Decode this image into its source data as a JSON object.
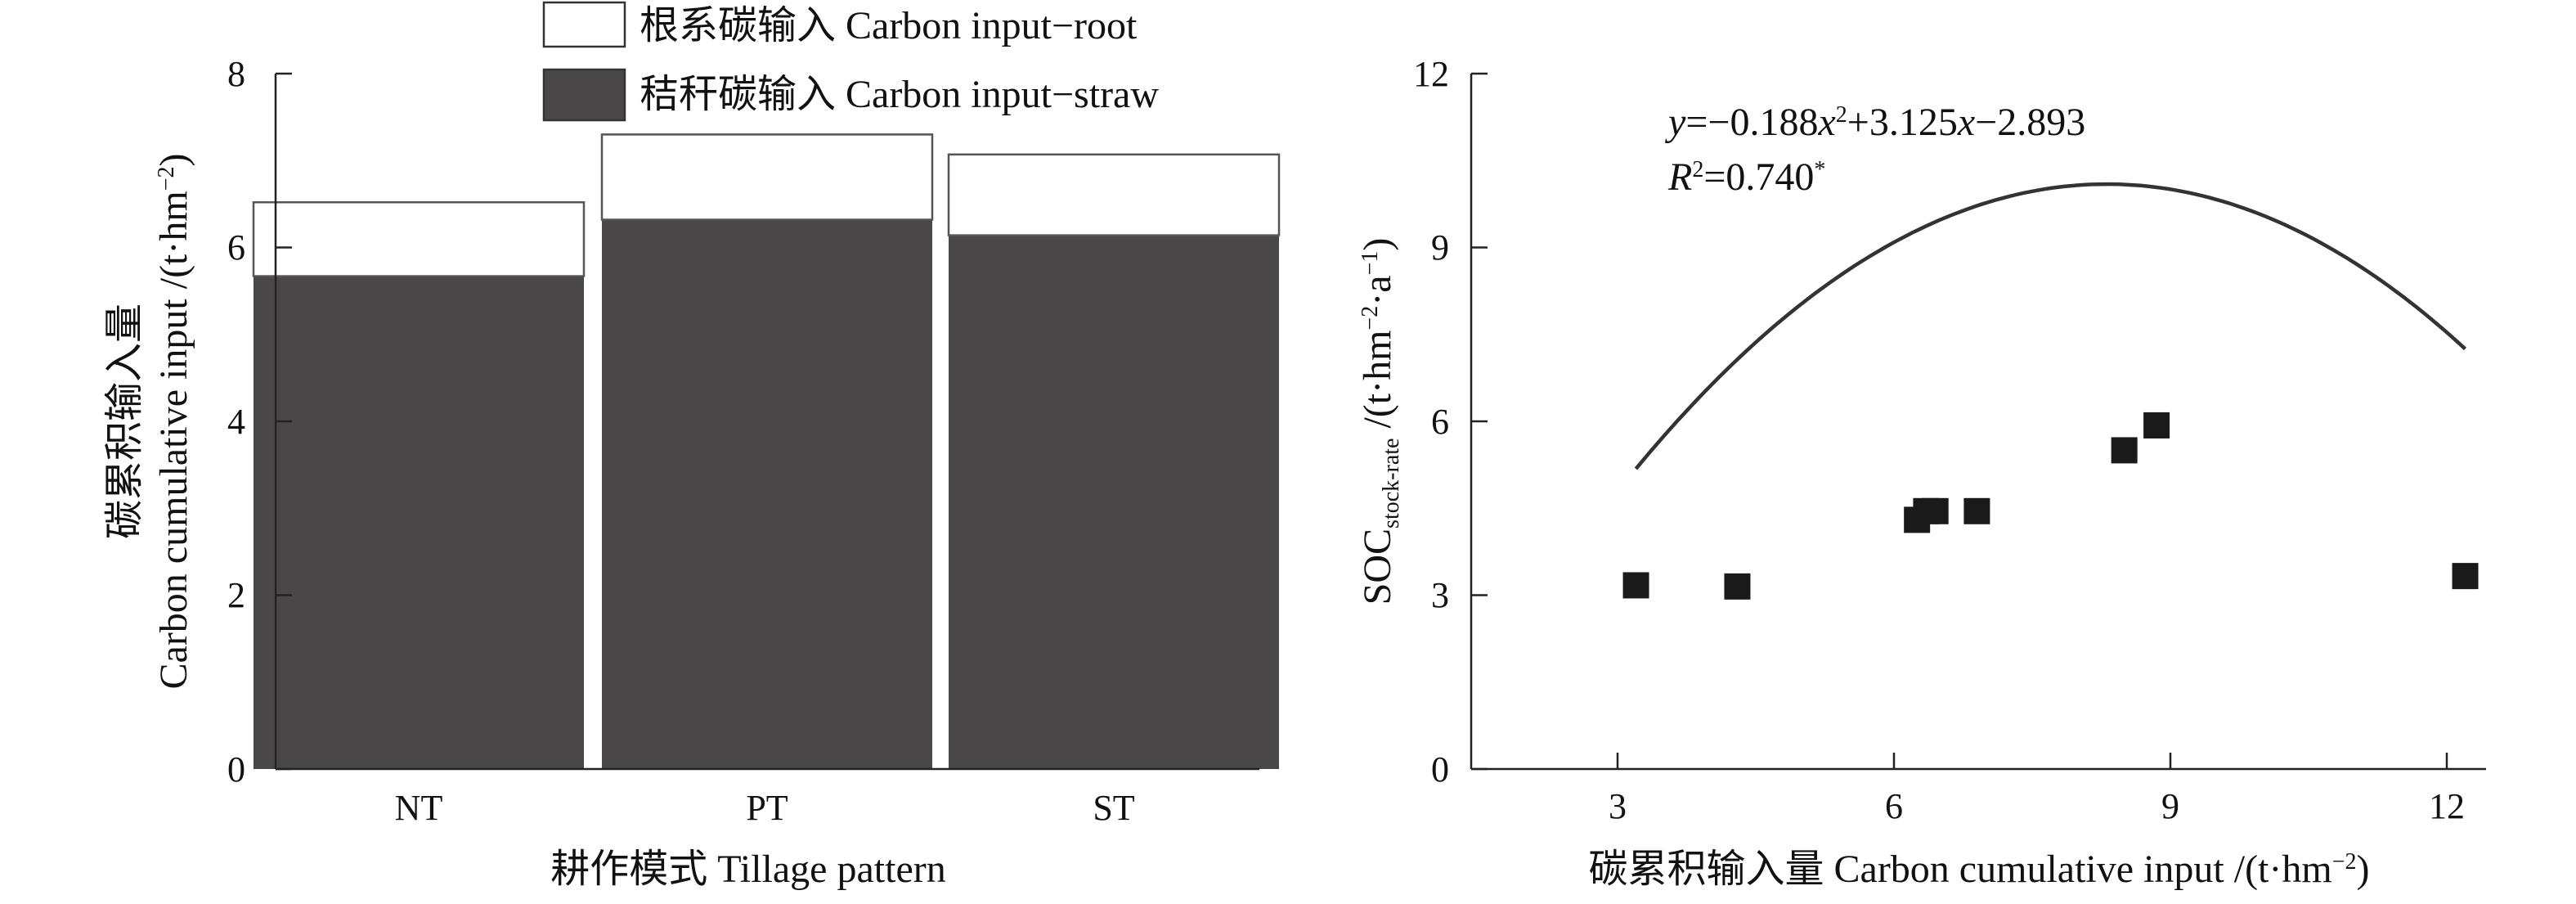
{
  "chart_data": [
    {
      "type": "bar",
      "stacked": true,
      "categories": [
        "NT",
        "PT",
        "ST"
      ],
      "series": [
        {
          "name": "秸秆碳输入 Carbon input−straw",
          "values": [
            5.67,
            6.32,
            6.14
          ],
          "color": "#4a4748"
        },
        {
          "name": "根系碳输入 Carbon input−root",
          "values": [
            0.85,
            0.98,
            0.93
          ],
          "color": "#ffffff"
        }
      ],
      "legend": {
        "position": "top",
        "items": [
          "根系碳输入 Carbon input−root",
          "秸秆碳输入 Carbon input−straw"
        ]
      },
      "xlabel": "耕作模式 Tillage pattern",
      "ylabel_line1": "碳累积输入量",
      "ylabel_line2": "Carbon cumulative input /(t·hm",
      "ylabel_sup": "−2",
      "ylabel_close": ")",
      "ylim": [
        0,
        8
      ],
      "yticks": [
        "0",
        "2",
        "4",
        "6",
        "8"
      ]
    },
    {
      "type": "scatter",
      "points": [
        {
          "x": 3.2,
          "y": 3.17
        },
        {
          "x": 4.3,
          "y": 3.15
        },
        {
          "x": 6.25,
          "y": 4.3
        },
        {
          "x": 6.35,
          "y": 4.45
        },
        {
          "x": 6.45,
          "y": 4.45
        },
        {
          "x": 6.9,
          "y": 4.45
        },
        {
          "x": 8.5,
          "y": 5.5
        },
        {
          "x": 8.85,
          "y": 5.93
        },
        {
          "x": 12.2,
          "y": 3.33
        }
      ],
      "fit": {
        "a": -0.188,
        "b": 3.125,
        "c": -2.893,
        "x_from": 3.2,
        "x_to": 12.2
      },
      "equation": {
        "y": "y",
        "eq_a": "=−0.188",
        "x1": "x",
        "sq": "2",
        "eq_b": "+3.125",
        "x2": "x",
        "eq_c": "−2.893"
      },
      "r2": {
        "r": "R",
        "sq": "2",
        "value": "=0.740",
        "star": "*"
      },
      "xlabel": "碳累积输入量 Carbon cumulative input /(t·hm",
      "xlabel_sup": "−2",
      "xlabel_close": ")",
      "ylabel_main": "SOC",
      "ylabel_sub": "stock-rate",
      "ylabel_unit": " /(t·hm",
      "ylabel_sup1": "−2",
      "ylabel_mid": "·a",
      "ylabel_sup2": "−1",
      "ylabel_close": ")",
      "xlim": [
        1.5,
        12.5
      ],
      "ylim": [
        0,
        12
      ],
      "xticks": [
        "3",
        "6",
        "9",
        "12"
      ],
      "yticks": [
        "0",
        "3",
        "6",
        "9",
        "12"
      ]
    }
  ]
}
